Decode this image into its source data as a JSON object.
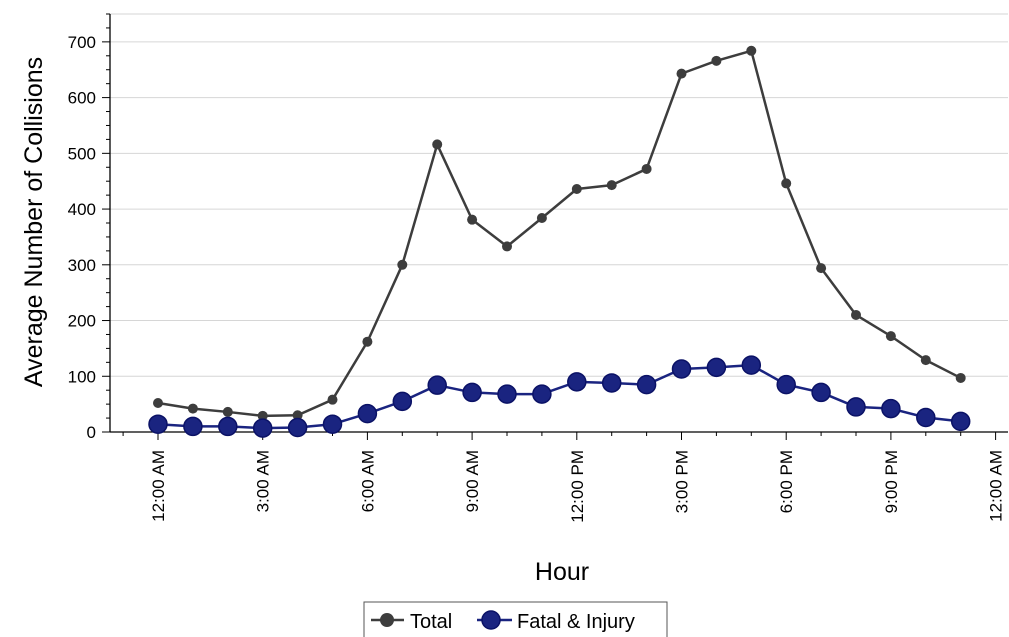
{
  "chart_data": {
    "type": "line",
    "xlabel": "Hour",
    "ylabel": "Average Number of Collisions",
    "ylim": [
      0,
      750
    ],
    "xlim": [
      -1,
      24
    ],
    "y_ticks": [
      0,
      100,
      200,
      300,
      400,
      500,
      600,
      700
    ],
    "y_tick_labels": [
      "0",
      "100",
      "200",
      "300",
      "400",
      "500",
      "600",
      "700"
    ],
    "x_ticks": [
      0,
      3,
      6,
      9,
      12,
      15,
      18,
      21,
      24
    ],
    "x_tick_labels": [
      "12:00 AM",
      "3:00 AM",
      "6:00 AM",
      "9:00 AM",
      "12:00 PM",
      "3:00 PM",
      "6:00 PM",
      "9:00 PM",
      "12:00 AM"
    ],
    "x": [
      0,
      1,
      2,
      3,
      4,
      5,
      6,
      7,
      8,
      9,
      10,
      11,
      12,
      13,
      14,
      15,
      16,
      17,
      18,
      19,
      20,
      21,
      22,
      23
    ],
    "grid": "horizontal",
    "legend_position": "bottom",
    "series": [
      {
        "name": "Total",
        "color": "#3d3d3d",
        "values": [
          52,
          42,
          36,
          29,
          30,
          58,
          162,
          300,
          516,
          381,
          333,
          384,
          436,
          443,
          472,
          643,
          666,
          684,
          446,
          294,
          210,
          172,
          129,
          97
        ]
      },
      {
        "name": "Fatal & Injury",
        "color": "#1a2480",
        "values": [
          14,
          10,
          10,
          7,
          8,
          14,
          33,
          55,
          84,
          71,
          68,
          68,
          90,
          88,
          85,
          113,
          116,
          120,
          85,
          71,
          45,
          42,
          26,
          19
        ]
      }
    ]
  }
}
